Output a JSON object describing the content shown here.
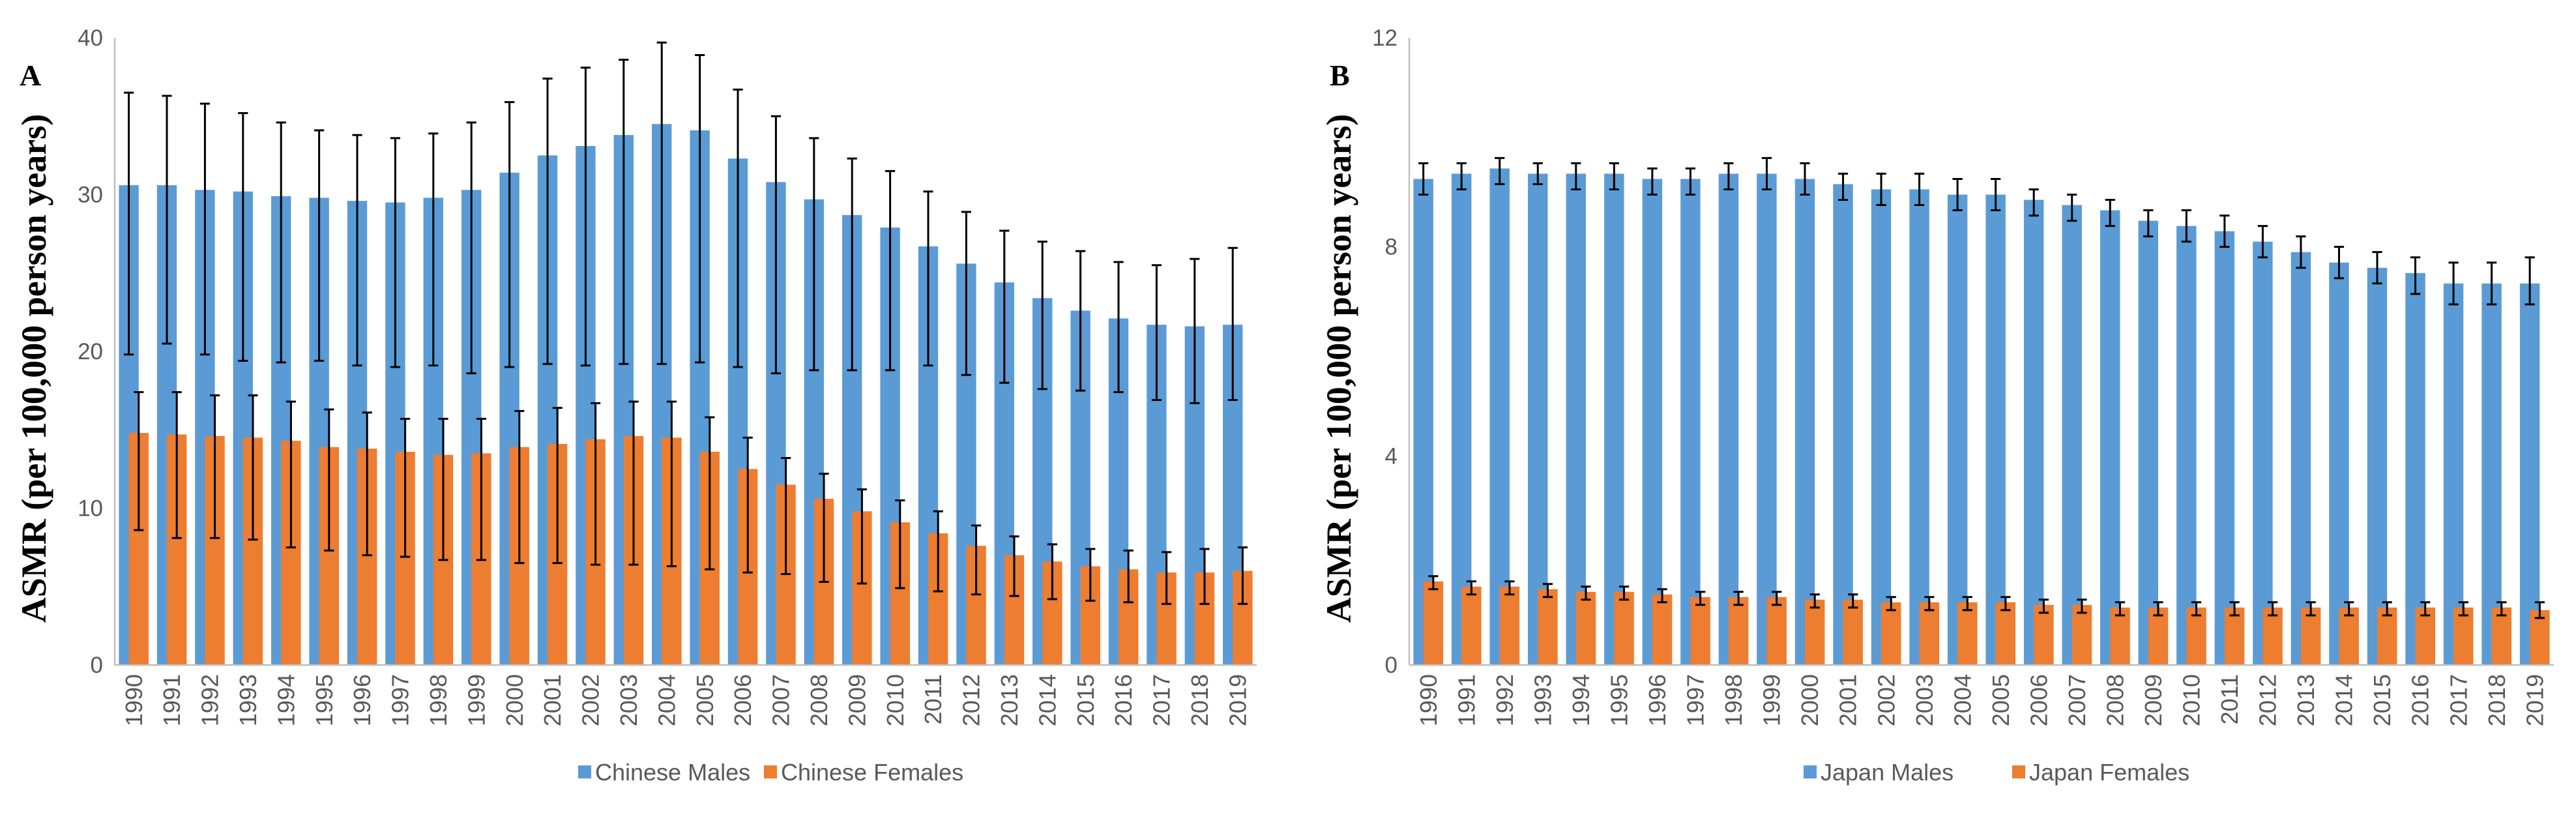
{
  "chart_data": [
    {
      "type": "bar",
      "panel_label": "A",
      "ylabel": "ASMR (per 100,000 person years)",
      "ylim": [
        0,
        40
      ],
      "yticks": [
        0,
        10,
        20,
        30,
        40
      ],
      "legend": "bottom",
      "categories": [
        "1990",
        "1991",
        "1992",
        "1993",
        "1994",
        "1995",
        "1996",
        "1997",
        "1998",
        "1999",
        "2000",
        "2001",
        "2002",
        "2003",
        "2004",
        "2005",
        "2006",
        "2007",
        "2008",
        "2009",
        "2010",
        "2011",
        "2012",
        "2013",
        "2014",
        "2015",
        "2016",
        "2017",
        "2018",
        "2019"
      ],
      "series": [
        {
          "name": "Chinese Males",
          "color": "#5B9BD5",
          "values": [
            30.6,
            30.6,
            30.3,
            30.2,
            29.9,
            29.8,
            29.6,
            29.5,
            29.8,
            30.3,
            31.4,
            32.5,
            33.1,
            33.8,
            34.5,
            34.1,
            32.3,
            30.8,
            29.7,
            28.7,
            27.9,
            26.7,
            25.6,
            24.4,
            23.4,
            22.6,
            22.1,
            21.7,
            21.6,
            21.7
          ],
          "error_upper": [
            36.5,
            36.3,
            35.8,
            35.2,
            34.6,
            34.1,
            33.8,
            33.6,
            33.9,
            34.6,
            35.9,
            37.4,
            38.1,
            38.6,
            39.7,
            38.9,
            36.7,
            35.0,
            33.6,
            32.3,
            31.5,
            30.2,
            28.9,
            27.7,
            27.0,
            26.4,
            25.7,
            25.5,
            25.9,
            26.6
          ],
          "error_lower": [
            19.8,
            20.5,
            19.8,
            19.4,
            19.3,
            19.4,
            19.1,
            19.0,
            19.1,
            18.6,
            19.0,
            19.2,
            19.1,
            19.2,
            19.2,
            19.3,
            19.0,
            18.6,
            18.8,
            18.8,
            18.8,
            19.1,
            18.5,
            18.0,
            17.6,
            17.5,
            17.4,
            16.9,
            16.7,
            16.9
          ]
        },
        {
          "name": "Chinese Females",
          "color": "#ED7D31",
          "values": [
            14.8,
            14.7,
            14.6,
            14.5,
            14.3,
            13.9,
            13.8,
            13.6,
            13.4,
            13.5,
            13.9,
            14.1,
            14.4,
            14.6,
            14.5,
            13.6,
            12.5,
            11.5,
            10.6,
            9.8,
            9.1,
            8.4,
            7.6,
            7.0,
            6.6,
            6.3,
            6.1,
            5.9,
            5.9,
            6.0
          ],
          "error_upper": [
            17.4,
            17.4,
            17.2,
            17.2,
            16.8,
            16.3,
            16.1,
            15.7,
            15.7,
            15.7,
            16.2,
            16.4,
            16.7,
            16.8,
            16.8,
            15.8,
            14.5,
            13.2,
            12.2,
            11.2,
            10.5,
            9.8,
            8.9,
            8.2,
            7.7,
            7.4,
            7.3,
            7.2,
            7.4,
            7.5
          ],
          "error_lower": [
            8.6,
            8.1,
            8.1,
            8.0,
            7.5,
            7.3,
            7.0,
            6.9,
            6.7,
            6.7,
            6.5,
            6.5,
            6.4,
            6.4,
            6.3,
            6.1,
            5.9,
            5.8,
            5.3,
            5.2,
            4.9,
            4.7,
            4.5,
            4.4,
            4.2,
            4.1,
            4.0,
            3.9,
            3.9,
            3.9
          ]
        }
      ]
    },
    {
      "type": "bar",
      "panel_label": "B",
      "ylabel": "ASMR (per 100,000 person years)",
      "ylim": [
        0,
        12
      ],
      "yticks": [
        0,
        4,
        8,
        12
      ],
      "legend": "bottom",
      "categories": [
        "1990",
        "1991",
        "1992",
        "1993",
        "1994",
        "1995",
        "1996",
        "1997",
        "1998",
        "1999",
        "2000",
        "2001",
        "2002",
        "2003",
        "2004",
        "2005",
        "2006",
        "2007",
        "2008",
        "2009",
        "2010",
        "2011",
        "2012",
        "2013",
        "2014",
        "2015",
        "2016",
        "2017",
        "2018",
        "2019"
      ],
      "series": [
        {
          "name": "Japan Males",
          "color": "#5B9BD5",
          "values": [
            9.3,
            9.4,
            9.5,
            9.4,
            9.4,
            9.4,
            9.3,
            9.3,
            9.4,
            9.4,
            9.3,
            9.2,
            9.1,
            9.1,
            9.0,
            9.0,
            8.9,
            8.8,
            8.7,
            8.5,
            8.4,
            8.3,
            8.1,
            7.9,
            7.7,
            7.6,
            7.5,
            7.3,
            7.3,
            7.3
          ],
          "error_upper": [
            9.6,
            9.6,
            9.7,
            9.6,
            9.6,
            9.6,
            9.5,
            9.5,
            9.6,
            9.7,
            9.6,
            9.4,
            9.4,
            9.4,
            9.3,
            9.3,
            9.1,
            9.0,
            8.9,
            8.7,
            8.7,
            8.6,
            8.4,
            8.2,
            8.0,
            7.9,
            7.8,
            7.7,
            7.7,
            7.8
          ],
          "error_lower": [
            9.0,
            9.1,
            9.2,
            9.2,
            9.1,
            9.1,
            9.0,
            9.0,
            9.1,
            9.1,
            9.0,
            8.9,
            8.8,
            8.8,
            8.7,
            8.7,
            8.6,
            8.5,
            8.4,
            8.2,
            8.1,
            8.0,
            7.8,
            7.6,
            7.4,
            7.3,
            7.1,
            6.9,
            6.9,
            6.9
          ]
        },
        {
          "name": "Japan Females",
          "color": "#ED7D31",
          "values": [
            1.6,
            1.5,
            1.5,
            1.45,
            1.4,
            1.4,
            1.35,
            1.3,
            1.3,
            1.3,
            1.25,
            1.25,
            1.2,
            1.2,
            1.2,
            1.2,
            1.15,
            1.15,
            1.1,
            1.1,
            1.1,
            1.1,
            1.1,
            1.1,
            1.1,
            1.1,
            1.1,
            1.1,
            1.1,
            1.05
          ],
          "error_upper": [
            1.7,
            1.6,
            1.6,
            1.55,
            1.5,
            1.5,
            1.45,
            1.4,
            1.4,
            1.4,
            1.35,
            1.35,
            1.3,
            1.3,
            1.3,
            1.3,
            1.25,
            1.25,
            1.2,
            1.2,
            1.2,
            1.2,
            1.2,
            1.2,
            1.2,
            1.2,
            1.2,
            1.2,
            1.2,
            1.2
          ],
          "error_lower": [
            1.45,
            1.35,
            1.35,
            1.3,
            1.25,
            1.25,
            1.2,
            1.15,
            1.15,
            1.15,
            1.1,
            1.1,
            1.05,
            1.05,
            1.05,
            1.05,
            1.0,
            1.0,
            0.95,
            0.95,
            0.95,
            0.95,
            0.95,
            0.95,
            0.95,
            0.95,
            0.95,
            0.95,
            0.95,
            0.9
          ]
        }
      ]
    }
  ]
}
